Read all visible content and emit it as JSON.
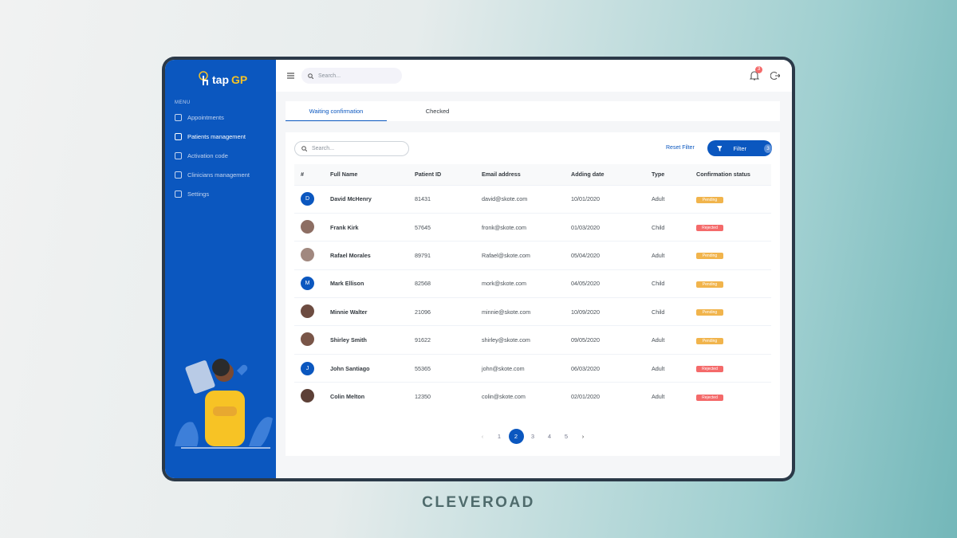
{
  "brand": {
    "prefix": "tap",
    "suffix": "GP"
  },
  "sidebar": {
    "menu_label": "MENU",
    "items": [
      "Appointments",
      "Patients management",
      "Activation code",
      "Clinicians management",
      "Settings"
    ],
    "active": 1
  },
  "topbar": {
    "search_placeholder": "Search...",
    "notifications": 3
  },
  "tabs": {
    "items": [
      "Waiting confirmation",
      "Checked"
    ],
    "active": 0
  },
  "toolbar": {
    "search_placeholder": "Search...",
    "reset": "Reset Filter",
    "filter": "Filter",
    "filter_count": 3
  },
  "table": {
    "columns": [
      "#",
      "Full Name",
      "Patient ID",
      "Email address",
      "Adding date",
      "Type",
      "Confirmation status"
    ],
    "rows": [
      {
        "initial": "D",
        "name": "David McHenry",
        "id": "81431",
        "email": "david@skote.com",
        "date": "10/01/2020",
        "type": "Adult",
        "status": "Pending"
      },
      {
        "name": "Frank Kirk",
        "id": "57645",
        "email": "fronk@skote.com",
        "date": "01/03/2020",
        "type": "Child",
        "status": "Rejected"
      },
      {
        "name": "Rafael Morales",
        "id": "89791",
        "email": "Rafael@skote.com",
        "date": "05/04/2020",
        "type": "Adult",
        "status": "Pending"
      },
      {
        "initial": "M",
        "name": "Mark Ellison",
        "id": "82568",
        "email": "mork@skote.com",
        "date": "04/05/2020",
        "type": "Child",
        "status": "Pending"
      },
      {
        "name": "Minnie Walter",
        "id": "21096",
        "email": "minnie@skote.com",
        "date": "10/09/2020",
        "type": "Child",
        "status": "Pending"
      },
      {
        "name": "Shirley Smith",
        "id": "91622",
        "email": "shirley@skote.com",
        "date": "09/05/2020",
        "type": "Adult",
        "status": "Pending"
      },
      {
        "initial": "J",
        "name": "John Santiago",
        "id": "55365",
        "email": "john@skote.com",
        "date": "06/03/2020",
        "type": "Adult",
        "status": "Rejected"
      },
      {
        "name": "Colin Melton",
        "id": "12350",
        "email": "colin@skote.com",
        "date": "02/01/2020",
        "type": "Adult",
        "status": "Rejected"
      }
    ]
  },
  "pagination": {
    "pages": [
      "1",
      "2",
      "3",
      "4",
      "5"
    ],
    "active": 1
  },
  "footer": "CLEVEROAD"
}
